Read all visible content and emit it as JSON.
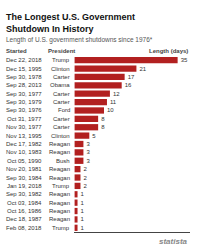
{
  "chart_data": {
    "type": "bar",
    "orientation": "horizontal",
    "title": "The Longest U.S. Government Shutdown In History",
    "subtitle": "Length of U.S. government shutdowns since 1976*",
    "column_headers": [
      "Started",
      "President",
      "Length (days)"
    ],
    "source": "statista",
    "categories": [
      "Dec 22, 2018",
      "Dec 15, 1995",
      "Sep 30, 1978",
      "Sep 28, 2013",
      "Sep 30, 1977",
      "Sep 30, 1979",
      "Sep 30, 1976",
      "Oct 31, 1977",
      "Nov 30, 1977",
      "Nov 13, 1995",
      "Dec 17, 1982",
      "Nov 10, 1983",
      "Oct 05, 1990",
      "Nov 20, 1981",
      "Sep 30, 1984",
      "Jan 19, 2018",
      "Sep 30, 1982",
      "Oct 03, 1984",
      "Oct 16, 1986",
      "Dec 18, 1987",
      "Feb 08, 2018"
    ],
    "presidents": [
      "Trump",
      "Clinton",
      "Carter",
      "Obama",
      "Carter",
      "Carter",
      "Ford",
      "Carter",
      "Carter",
      "Clinton",
      "Reagan",
      "Reagan",
      "Bush",
      "Reagan",
      "Reagan",
      "Trump",
      "Reagan",
      "Reagan",
      "Reagan",
      "Reagan",
      "Trump"
    ],
    "values": [
      35,
      21,
      17,
      16,
      12,
      11,
      10,
      8,
      8,
      5,
      3,
      3,
      3,
      2,
      2,
      2,
      1,
      1,
      1,
      1,
      1
    ],
    "color": "#b22020",
    "xlim": [
      -0.2,
      39.2
    ],
    "data_labels": true,
    "tick_labels": false,
    "grid": false
  }
}
